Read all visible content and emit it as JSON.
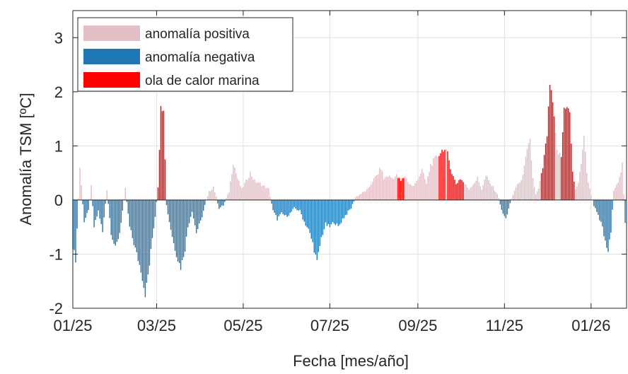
{
  "chart_data": {
    "type": "bar",
    "xlabel": "Fecha [mes/año]",
    "ylabel": "Anomalía TSM [ºC]",
    "ylim": [
      -2,
      3.5
    ],
    "yticks": [
      -2,
      -1,
      0,
      1,
      2,
      3
    ],
    "ytick_labels": [
      "-2",
      "-1",
      "0",
      "1",
      "2",
      "3"
    ],
    "xticks": [
      "01/25",
      "03/25",
      "05/25",
      "07/25",
      "09/25",
      "11/25",
      "01/26"
    ],
    "grid": true,
    "legend_position": "top-left",
    "legend": [
      {
        "label": "anomalía positiva",
        "color": "#e3bfc6"
      },
      {
        "label": "anomalía negativa",
        "color": "#1f77b4"
      },
      {
        "label": "ola de calor marina",
        "color": "#ff0000"
      }
    ],
    "x_domain_days": [
      0,
      390
    ],
    "note_x": "day index from 01/01/25",
    "anchors": [
      [
        0,
        -0.85
      ],
      [
        2,
        -1.1
      ],
      [
        5,
        0.6
      ],
      [
        8,
        -0.4
      ],
      [
        11,
        -0.2
      ],
      [
        13,
        0.25
      ],
      [
        15,
        -0.5
      ],
      [
        18,
        -0.2
      ],
      [
        21,
        -0.6
      ],
      [
        24,
        0.2
      ],
      [
        27,
        -0.6
      ],
      [
        30,
        -0.9
      ],
      [
        33,
        -0.6
      ],
      [
        37,
        0.2
      ],
      [
        40,
        -0.5
      ],
      [
        44,
        -0.9
      ],
      [
        48,
        -1.3
      ],
      [
        51,
        -1.75
      ],
      [
        54,
        -1.2
      ],
      [
        56,
        -0.7
      ],
      [
        58,
        -0.3
      ],
      [
        60,
        0.25
      ],
      [
        62,
        1.7
      ],
      [
        64,
        1.7
      ],
      [
        66,
        -0.1
      ],
      [
        68,
        -0.4
      ],
      [
        71,
        -0.8
      ],
      [
        74,
        -1.1
      ],
      [
        76,
        -1.25
      ],
      [
        79,
        -0.9
      ],
      [
        81,
        -0.5
      ],
      [
        84,
        -0.2
      ],
      [
        87,
        -0.6
      ],
      [
        90,
        -0.4
      ],
      [
        93,
        -0.1
      ],
      [
        96,
        0.15
      ],
      [
        99,
        0.25
      ],
      [
        103,
        -0.15
      ],
      [
        106,
        -0.1
      ],
      [
        110,
        0.15
      ],
      [
        113,
        0.7
      ],
      [
        116,
        0.4
      ],
      [
        119,
        0.2
      ],
      [
        122,
        0.35
      ],
      [
        125,
        0.5
      ],
      [
        128,
        0.35
      ],
      [
        132,
        0.3
      ],
      [
        135,
        0.25
      ],
      [
        138,
        0.2
      ],
      [
        141,
        -0.2
      ],
      [
        144,
        -0.35
      ],
      [
        147,
        -0.25
      ],
      [
        150,
        -0.3
      ],
      [
        153,
        -0.25
      ],
      [
        156,
        -0.15
      ],
      [
        160,
        -0.2
      ],
      [
        163,
        -0.4
      ],
      [
        166,
        -0.55
      ],
      [
        169,
        -0.8
      ],
      [
        172,
        -1.15
      ],
      [
        175,
        -0.7
      ],
      [
        178,
        -0.45
      ],
      [
        181,
        -0.5
      ],
      [
        184,
        -0.4
      ],
      [
        187,
        -0.5
      ],
      [
        190,
        -0.35
      ],
      [
        193,
        -0.25
      ],
      [
        196,
        -0.15
      ],
      [
        199,
        0.05
      ],
      [
        202,
        0.1
      ],
      [
        205,
        0.15
      ],
      [
        208,
        0.2
      ],
      [
        211,
        0.35
      ],
      [
        214,
        0.45
      ],
      [
        217,
        0.6
      ],
      [
        219,
        0.4
      ],
      [
        222,
        0.45
      ],
      [
        225,
        0.4
      ],
      [
        228,
        0.45
      ],
      [
        231,
        0.35
      ],
      [
        234,
        0.45
      ],
      [
        237,
        0.3
      ],
      [
        240,
        0.25
      ],
      [
        243,
        0.4
      ],
      [
        246,
        0.55
      ],
      [
        249,
        0.3
      ],
      [
        252,
        0.65
      ],
      [
        255,
        0.75
      ],
      [
        258,
        0.85
      ],
      [
        261,
        0.95
      ],
      [
        264,
        0.85
      ],
      [
        267,
        0.5
      ],
      [
        270,
        0.3
      ],
      [
        273,
        0.4
      ],
      [
        276,
        0.3
      ],
      [
        279,
        0.2
      ],
      [
        282,
        0.3
      ],
      [
        285,
        0.4
      ],
      [
        288,
        0.2
      ],
      [
        291,
        0.45
      ],
      [
        294,
        0.3
      ],
      [
        297,
        0.2
      ],
      [
        300,
        0.05
      ],
      [
        302,
        -0.2
      ],
      [
        305,
        -0.35
      ],
      [
        307,
        -0.15
      ],
      [
        310,
        0.1
      ],
      [
        313,
        0.3
      ],
      [
        315,
        0.3
      ],
      [
        318,
        0.6
      ],
      [
        320,
        0.9
      ],
      [
        322,
        1.1
      ],
      [
        324,
        0.4
      ],
      [
        326,
        0.1
      ],
      [
        328,
        0.2
      ],
      [
        331,
        0.6
      ],
      [
        334,
        1.2
      ],
      [
        336,
        2.15
      ],
      [
        338,
        1.8
      ],
      [
        341,
        0.9
      ],
      [
        344,
        0.8
      ],
      [
        346,
        1.7
      ],
      [
        348,
        1.75
      ],
      [
        350,
        1.6
      ],
      [
        352,
        0.5
      ],
      [
        354,
        0.2
      ],
      [
        356,
        0.3
      ],
      [
        358,
        0.7
      ],
      [
        360,
        1.2
      ],
      [
        362,
        0.5
      ],
      [
        364,
        0.2
      ],
      [
        367,
        -0.1
      ],
      [
        370,
        -0.3
      ],
      [
        373,
        -0.5
      ],
      [
        375,
        -0.8
      ],
      [
        377,
        -0.95
      ],
      [
        379,
        -0.6
      ],
      [
        381,
        0.2
      ],
      [
        383,
        0.3
      ],
      [
        385,
        0.4
      ],
      [
        387,
        0.65
      ],
      [
        389,
        -0.45
      ],
      [
        390,
        0.0
      ]
    ],
    "heatwave_day_ranges": [
      [
        60,
        65
      ],
      [
        229,
        233
      ],
      [
        258,
        262
      ],
      [
        264,
        275
      ],
      [
        330,
        339
      ],
      [
        344,
        353
      ]
    ]
  }
}
